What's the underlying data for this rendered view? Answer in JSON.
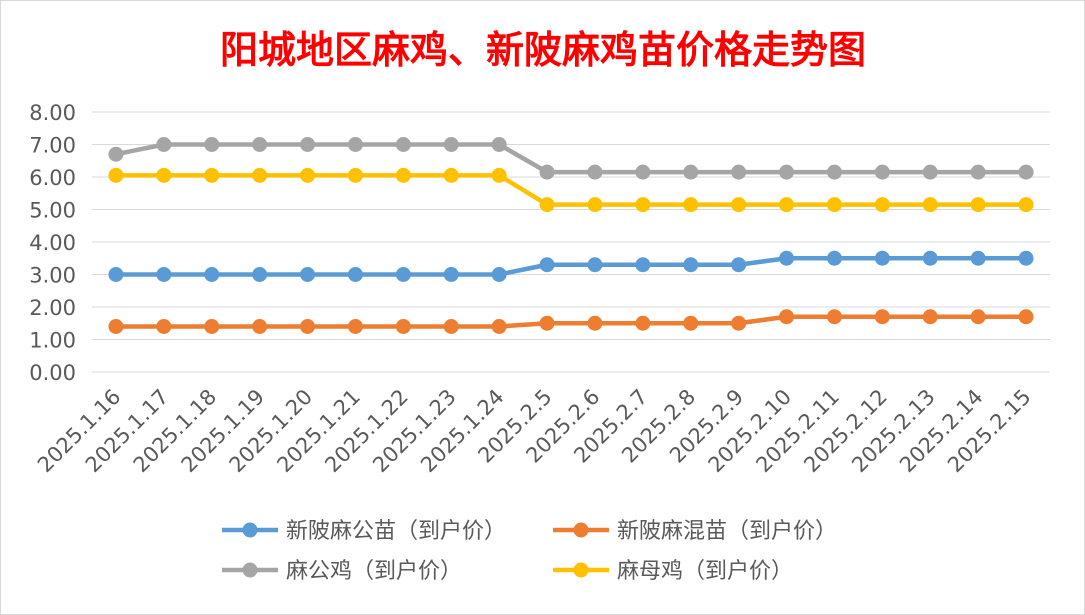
{
  "chart_data": {
    "type": "line",
    "title": "阳城地区麻鸡、新陂麻鸡苗价格走势图",
    "title_color": "#ff0000",
    "categories": [
      "2025.1.16",
      "2025.1.17",
      "2025.1.18",
      "2025.1.19",
      "2025.1.20",
      "2025.1.21",
      "2025.1.22",
      "2025.1.23",
      "2025.1.24",
      "2025.2.5",
      "2025.2.6",
      "2025.2.7",
      "2025.2.8",
      "2025.2.9",
      "2025.2.10",
      "2025.2.11",
      "2025.2.12",
      "2025.2.13",
      "2025.2.14",
      "2025.2.15"
    ],
    "y_ticks": [
      "0.00",
      "1.00",
      "2.00",
      "3.00",
      "4.00",
      "5.00",
      "6.00",
      "7.00",
      "8.00"
    ],
    "ylim": [
      0,
      8
    ],
    "grid": true,
    "legend_position": "bottom",
    "series": [
      {
        "name": "新陂麻公苗（到户价）",
        "color": "#5b9bd5",
        "values": [
          3.0,
          3.0,
          3.0,
          3.0,
          3.0,
          3.0,
          3.0,
          3.0,
          3.0,
          3.3,
          3.3,
          3.3,
          3.3,
          3.3,
          3.5,
          3.5,
          3.5,
          3.5,
          3.5,
          3.5
        ]
      },
      {
        "name": "新陂麻混苗（到户价）",
        "color": "#ed7d31",
        "values": [
          1.4,
          1.4,
          1.4,
          1.4,
          1.4,
          1.4,
          1.4,
          1.4,
          1.4,
          1.5,
          1.5,
          1.5,
          1.5,
          1.5,
          1.7,
          1.7,
          1.7,
          1.7,
          1.7,
          1.7
        ]
      },
      {
        "name": "麻公鸡（到户价）",
        "color": "#a5a5a5",
        "values": [
          6.7,
          7.0,
          7.0,
          7.0,
          7.0,
          7.0,
          7.0,
          7.0,
          7.0,
          6.15,
          6.15,
          6.15,
          6.15,
          6.15,
          6.15,
          6.15,
          6.15,
          6.15,
          6.15,
          6.15
        ]
      },
      {
        "name": "麻母鸡（到户价）",
        "color": "#ffc000",
        "values": [
          6.05,
          6.05,
          6.05,
          6.05,
          6.05,
          6.05,
          6.05,
          6.05,
          6.05,
          5.15,
          5.15,
          5.15,
          5.15,
          5.15,
          5.15,
          5.15,
          5.15,
          5.15,
          5.15,
          5.15
        ]
      }
    ]
  }
}
